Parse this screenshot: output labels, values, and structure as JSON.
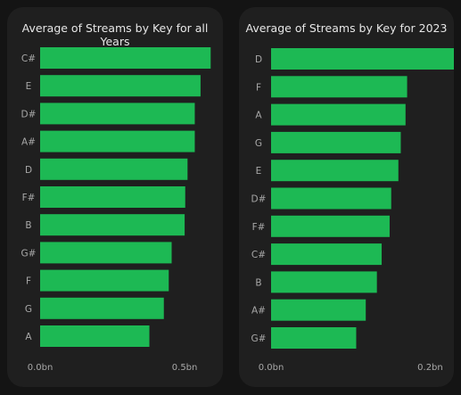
{
  "theme": {
    "page_bg": "#141414",
    "card_bg": "#1f1f1f",
    "bar_color": "#1db954",
    "text_color": "#e6e6e6",
    "axis_text_color": "#a8a8a8"
  },
  "chart_data": [
    {
      "type": "bar",
      "orientation": "horizontal",
      "title": "Average of Streams by Key for all Years",
      "categories": [
        "C#",
        "E",
        "D#",
        "A#",
        "D",
        "F#",
        "B",
        "G#",
        "F",
        "G",
        "A"
      ],
      "values": [
        0.59,
        0.555,
        0.535,
        0.535,
        0.51,
        0.502,
        0.5,
        0.455,
        0.445,
        0.428,
        0.378
      ],
      "unit": "bn",
      "xlim": [
        0,
        0.6
      ],
      "xticks": [
        {
          "value": 0,
          "label": "0.0bn"
        },
        {
          "value": 0.5,
          "label": "0.5bn"
        }
      ],
      "grid": false,
      "legend": "none"
    },
    {
      "type": "bar",
      "orientation": "horizontal",
      "title": "Average of Streams by Key for 2023",
      "categories": [
        "D",
        "F",
        "A",
        "G",
        "E",
        "D#",
        "F#",
        "C#",
        "B",
        "A#",
        "G#"
      ],
      "values": [
        0.255,
        0.171,
        0.169,
        0.163,
        0.16,
        0.151,
        0.149,
        0.139,
        0.133,
        0.119,
        0.107
      ],
      "unit": "bn",
      "xlim": [
        0,
        0.26
      ],
      "xticks": [
        {
          "value": 0,
          "label": "0.0bn"
        },
        {
          "value": 0.2,
          "label": "0.2bn"
        }
      ],
      "grid": false,
      "legend": "none"
    }
  ]
}
